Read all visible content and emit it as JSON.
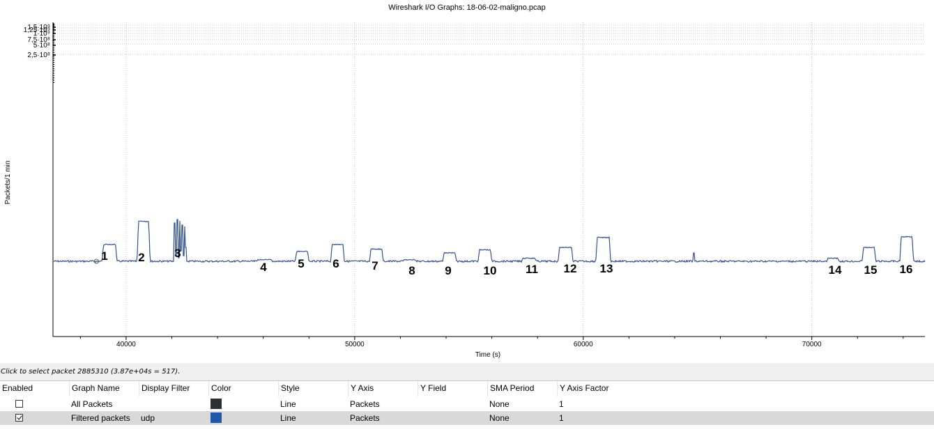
{
  "window": {
    "title": "Wireshark I/O Graphs: 18-06-02-maligno.pcap"
  },
  "chart_data": {
    "type": "line",
    "title": "Wireshark I/O Graphs: 18-06-02-maligno.pcap",
    "xlabel": "Time (s)",
    "ylabel": "Packets/1 min",
    "xlim": [
      36800,
      74950
    ],
    "x_ticks": [
      40000,
      50000,
      60000,
      70000
    ],
    "x_tick_labels": [
      "40000",
      "50000",
      "60000",
      "70000"
    ],
    "y_scale": "log",
    "y_tick_labels": [
      "2,5·10⁸",
      "5·10⁸",
      "7,5·10⁸",
      "1·10⁹",
      "1,25·10⁹",
      "1,5·10⁹"
    ],
    "grid": true,
    "baseline_label": "",
    "series": [
      {
        "name": "Filtered packets",
        "color": "#33528f",
        "bursts": [
          {
            "start": 38950,
            "end": 39600,
            "level": 0.22
          },
          {
            "start": 40480,
            "end": 41050,
            "level": 0.52
          },
          {
            "start": 42050,
            "end": 42700,
            "level": 0.0,
            "spiky": true
          },
          {
            "start": 45700,
            "end": 46400,
            "level": 0.02
          },
          {
            "start": 47400,
            "end": 48000,
            "level": 0.13
          },
          {
            "start": 48950,
            "end": 49550,
            "level": 0.22
          },
          {
            "start": 50650,
            "end": 51250,
            "level": 0.16
          },
          {
            "start": 52100,
            "end": 52700,
            "level": 0.02
          },
          {
            "start": 53850,
            "end": 54450,
            "level": 0.11
          },
          {
            "start": 55400,
            "end": 56000,
            "level": 0.15
          },
          {
            "start": 57300,
            "end": 57950,
            "level": 0.04
          },
          {
            "start": 58900,
            "end": 59550,
            "level": 0.18
          },
          {
            "start": 60550,
            "end": 61200,
            "level": 0.31
          },
          {
            "start": 70650,
            "end": 71200,
            "level": 0.04
          },
          {
            "start": 72200,
            "end": 72800,
            "level": 0.18
          },
          {
            "start": 73850,
            "end": 74450,
            "level": 0.32
          }
        ],
        "spike_at": 64850
      }
    ],
    "annotations": [
      "1",
      "2",
      "3",
      "4",
      "5",
      "6",
      "7",
      "8",
      "9",
      "10",
      "11",
      "12",
      "13",
      "14",
      "15",
      "16"
    ]
  },
  "status": {
    "text": "Click to select packet 2885310 (3.87e+04s = 517)."
  },
  "graph_table": {
    "headers": [
      "Enabled",
      "Graph Name",
      "Display Filter",
      "Color",
      "Style",
      "Y Axis",
      "Y Field",
      "SMA Period",
      "Y Axis Factor"
    ],
    "rows": [
      {
        "enabled": false,
        "name": "All Packets",
        "filter": "",
        "color": "#2d3033",
        "style": "Line",
        "y_axis": "Packets",
        "y_field": "",
        "sma": "None",
        "factor": "1"
      },
      {
        "enabled": true,
        "name": "Filtered packets",
        "filter": "udp",
        "color": "#1f58a6",
        "style": "Line",
        "y_axis": "Packets",
        "y_field": "",
        "sma": "None",
        "factor": "1"
      }
    ]
  }
}
